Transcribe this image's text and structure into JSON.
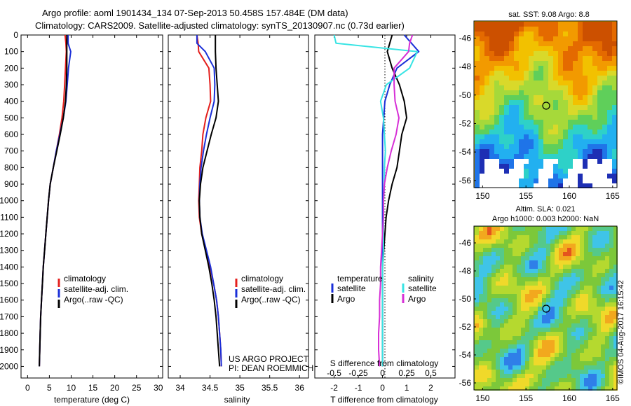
{
  "header": {
    "line1": "Argo profile: aoml 1901434_134 07-Sep-2013 50.458S 157.484E (DM data)",
    "line2": "Climatology: CARS2009. Satellite-adjusted climatology: synTS_20130907.nc (0.73d earlier)"
  },
  "colors": {
    "red": "#e4201e",
    "blue": "#1a2fd8",
    "black": "#000000",
    "cyan": "#38e4e4",
    "magenta": "#d62fd6"
  },
  "legend_labels": {
    "clim": "climatology",
    "sat": "satellite-adj. clim.",
    "argo": "Argo(..raw -QC)"
  },
  "diff_legend": {
    "t_head": "temperature",
    "s_head": "salinity",
    "t_sat": "satellite",
    "t_argo": "Argo",
    "s_sat": "satellite",
    "s_argo": "Argo"
  },
  "annotation": {
    "line1": "US ARGO PROJECT",
    "line2": "PI: DEAN ROEMMICH"
  },
  "map_sst": {
    "title": "sat. SST: 9.08 Argo: 8.8"
  },
  "map_sla": {
    "title1": "Altim. SLA: 0.021",
    "title2": "Argo h1000: 0.003 h2000: NaN"
  },
  "timestamp": "©IMOS 04-Aug-2017 16:15:42",
  "chart_data": [
    {
      "type": "line",
      "id": "temperature",
      "xlabel": "temperature (deg C)",
      "ylabel": "",
      "xlim": [
        -1.5,
        31
      ],
      "ylim": [
        2070,
        0
      ],
      "xticks": [
        0,
        5,
        10,
        15,
        20,
        25,
        30
      ],
      "yticks": [
        0,
        100,
        200,
        300,
        400,
        500,
        600,
        700,
        800,
        900,
        1000,
        1100,
        1200,
        1300,
        1400,
        1500,
        1600,
        1700,
        1800,
        1900,
        2000
      ],
      "series": [
        {
          "name": "climatology",
          "color": "red",
          "x": [
            8.6,
            8.8,
            8.9,
            8.7,
            8.5,
            8.3,
            7.9,
            7.3,
            6.6,
            5.9,
            5.2,
            4.8,
            4.5,
            4.2,
            3.9,
            3.6,
            3.4,
            3.2,
            3.0,
            2.9,
            2.8,
            2.7
          ],
          "y": [
            0,
            50,
            100,
            200,
            300,
            400,
            500,
            600,
            700,
            800,
            900,
            1000,
            1100,
            1200,
            1300,
            1400,
            1500,
            1600,
            1700,
            1800,
            1900,
            2000
          ]
        },
        {
          "name": "satellite-adj. clim.",
          "color": "blue",
          "x": [
            9.3,
            9.3,
            9.9,
            9.4,
            9.1,
            8.8,
            8.2,
            7.4,
            6.6,
            5.9,
            5.2,
            4.8,
            4.5,
            4.2,
            3.9,
            3.6,
            3.4,
            3.2,
            3.0,
            2.9,
            2.8,
            2.7
          ],
          "y": [
            0,
            50,
            100,
            200,
            300,
            400,
            500,
            600,
            700,
            800,
            900,
            1000,
            1100,
            1200,
            1300,
            1400,
            1500,
            1600,
            1700,
            1800,
            1900,
            2000
          ]
        },
        {
          "name": "Argo(..raw -QC)",
          "color": "black",
          "x": [
            9.0,
            9.0,
            9.0,
            9.0,
            8.9,
            8.7,
            8.2,
            7.5,
            6.7,
            5.9,
            5.2,
            4.8,
            4.5,
            4.2,
            3.9,
            3.6,
            3.4,
            3.2,
            3.0,
            2.9,
            2.8,
            2.7
          ],
          "y": [
            0,
            50,
            100,
            200,
            300,
            400,
            500,
            600,
            700,
            800,
            900,
            1000,
            1100,
            1200,
            1300,
            1400,
            1500,
            1600,
            1700,
            1800,
            1900,
            2000
          ]
        }
      ]
    },
    {
      "type": "line",
      "id": "salinity",
      "xlabel": "salinity",
      "ylabel": "",
      "xlim": [
        33.8,
        36.15
      ],
      "ylim": [
        2070,
        0
      ],
      "xticks": [
        34,
        34.5,
        35,
        35.5,
        36
      ],
      "series": [
        {
          "name": "climatology",
          "color": "red",
          "x": [
            34.28,
            34.3,
            34.31,
            34.48,
            34.5,
            34.51,
            34.43,
            34.38,
            34.36,
            34.33,
            34.32,
            34.31,
            34.32,
            34.36,
            34.43,
            34.5,
            34.56,
            34.61,
            34.64,
            34.66,
            34.68,
            34.69
          ],
          "y": [
            0,
            50,
            100,
            200,
            300,
            400,
            500,
            600,
            700,
            800,
            900,
            1000,
            1100,
            1200,
            1300,
            1400,
            1500,
            1600,
            1700,
            1800,
            1900,
            2000
          ]
        },
        {
          "name": "satellite-adj. clim.",
          "color": "blue",
          "x": [
            34.28,
            34.28,
            34.42,
            34.57,
            34.58,
            34.57,
            34.5,
            34.44,
            34.39,
            34.35,
            34.33,
            34.32,
            34.33,
            34.37,
            34.44,
            34.51,
            34.56,
            34.61,
            34.64,
            34.66,
            34.68,
            34.69
          ],
          "y": [
            0,
            50,
            100,
            200,
            300,
            400,
            500,
            600,
            700,
            800,
            900,
            1000,
            1100,
            1200,
            1300,
            1400,
            1500,
            1600,
            1700,
            1800,
            1900,
            2000
          ]
        },
        {
          "name": "Argo(..raw -QC)",
          "color": "black",
          "x": [
            34.59,
            34.59,
            34.59,
            34.6,
            34.62,
            34.64,
            34.6,
            34.52,
            34.45,
            34.38,
            34.34,
            34.32,
            34.33,
            34.36,
            34.42,
            34.48,
            34.53,
            34.57,
            34.6,
            34.62,
            34.64,
            34.66
          ],
          "y": [
            0,
            50,
            100,
            200,
            300,
            400,
            500,
            600,
            700,
            800,
            900,
            1000,
            1100,
            1200,
            1300,
            1400,
            1500,
            1600,
            1700,
            1800,
            1900,
            2000
          ]
        }
      ]
    },
    {
      "type": "line",
      "id": "difference",
      "xlabel": "T difference from climatology",
      "xlabel_top": "S difference from climatology",
      "ylabel": "",
      "xlim": [
        -2.8,
        3.0
      ],
      "ylim": [
        2070,
        0
      ],
      "xticks": [
        -2,
        -1,
        0,
        1,
        2
      ],
      "xticks_top": [
        -0.5,
        -0.25,
        0,
        0.25,
        0.5
      ],
      "xtick_labels_top": [
        "-0.5",
        "-0.25",
        "0",
        "0.25",
        "0.5"
      ],
      "series": [
        {
          "name": "temperature satellite",
          "color": "blue",
          "x": [
            0.9,
            1.2,
            1.5,
            0.6,
            0.3,
            0.1,
            0.05,
            0.0,
            0.0,
            0.0,
            0.0,
            0.0,
            0.0,
            0.0,
            0.0,
            0.0,
            0.0,
            0.0,
            0.0,
            0.0,
            0.0,
            0.0
          ],
          "y": [
            0,
            50,
            100,
            200,
            300,
            400,
            500,
            600,
            700,
            800,
            900,
            1000,
            1100,
            1200,
            1300,
            1400,
            1500,
            1600,
            1700,
            1800,
            1900,
            2000
          ]
        },
        {
          "name": "temperature Argo",
          "color": "black",
          "x": [
            0.4,
            0.3,
            0.2,
            0.4,
            0.7,
            0.9,
            1.0,
            0.8,
            0.7,
            0.6,
            0.4,
            0.25,
            0.15,
            0.1,
            0.05,
            0.0,
            0.0,
            0.0,
            0.0,
            0.0,
            0.0,
            0.0
          ],
          "y": [
            0,
            50,
            100,
            200,
            300,
            400,
            500,
            600,
            700,
            800,
            900,
            1000,
            1100,
            1200,
            1300,
            1400,
            1500,
            1600,
            1700,
            1800,
            1900,
            2000
          ]
        },
        {
          "name": "salinity satellite",
          "color": "cyan",
          "x": [
            -0.5,
            -0.48,
            0.36,
            0.28,
            0.04,
            -0.02,
            0.01,
            0.02,
            0.03,
            0.02,
            0.02,
            0.01,
            0.01,
            0.01,
            0.01,
            0.0,
            0.0,
            0.0,
            0.0,
            0.0,
            0.0,
            0.0
          ],
          "y": [
            0,
            50,
            100,
            200,
            300,
            400,
            500,
            600,
            700,
            800,
            900,
            1000,
            1100,
            1200,
            1300,
            1400,
            1500,
            1600,
            1700,
            1800,
            1900,
            2000
          ]
        },
        {
          "name": "salinity Argo",
          "color": "magenta",
          "x": [
            0.31,
            0.28,
            0.27,
            0.12,
            0.12,
            0.13,
            0.17,
            0.14,
            0.09,
            0.05,
            0.02,
            0.01,
            0.01,
            0.0,
            -0.01,
            -0.02,
            -0.02,
            -0.03,
            -0.03,
            -0.04,
            -0.04,
            -0.03
          ],
          "y": [
            0,
            50,
            100,
            200,
            300,
            400,
            500,
            600,
            700,
            800,
            900,
            1000,
            1100,
            1200,
            1300,
            1400,
            1500,
            1600,
            1700,
            1800,
            1900,
            2000
          ]
        }
      ]
    },
    {
      "type": "heatmap",
      "id": "sst-map",
      "title": "sat. SST: 9.08 Argo: 8.8",
      "xlim": [
        149,
        165.5
      ],
      "ylim": [
        -56.5,
        -44.8
      ],
      "xticks": [
        150,
        155,
        160,
        165
      ],
      "yticks": [
        -46,
        -48,
        -50,
        -52,
        -54,
        -56
      ],
      "marker": {
        "lon": 157.48,
        "lat": -50.46
      }
    },
    {
      "type": "heatmap",
      "id": "sla-map",
      "title": "Altim. SLA: 0.021",
      "xlim": [
        149,
        165.5
      ],
      "ylim": [
        -56.5,
        -44.8
      ],
      "xticks": [
        150,
        155,
        160,
        165
      ],
      "yticks": [
        -46,
        -48,
        -50,
        -52,
        -54,
        -56
      ],
      "marker": {
        "lon": 157.48,
        "lat": -50.46
      }
    }
  ]
}
